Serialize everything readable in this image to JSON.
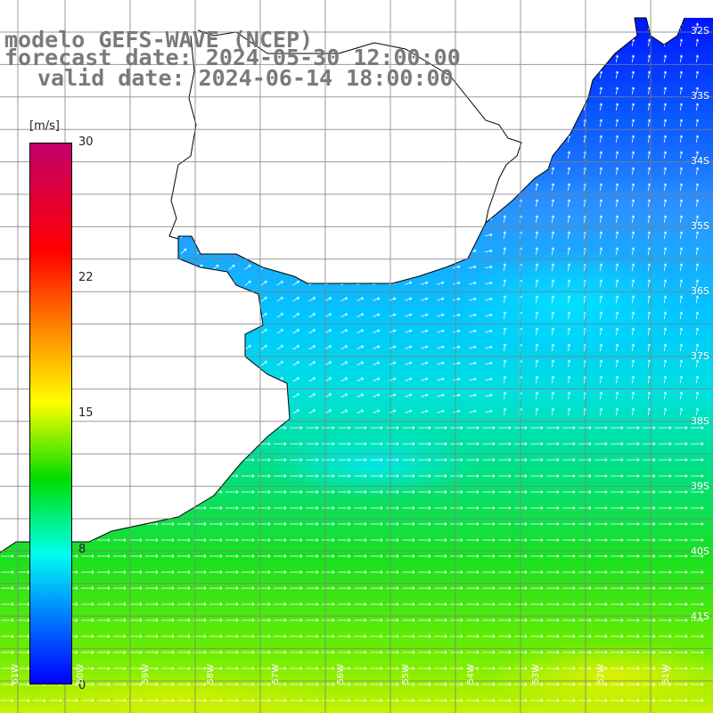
{
  "title": {
    "line1": "modelo GEFS-WAVE (NCEP)",
    "line2": "forecast date: 2024-05-30 12:00:00",
    "line3": "valid date: 2024-06-14 18:00:00"
  },
  "colorbar": {
    "unit": "[m/s]",
    "ticks": [
      "30",
      "22",
      "15",
      "8",
      "0"
    ],
    "colors": [
      "#c4006c",
      "#ff0000",
      "#ff7a00",
      "#ffff00",
      "#00dd00",
      "#00ffee",
      "#0078ff",
      "#0000ff"
    ]
  },
  "lat_labels": [
    "32S",
    "33S",
    "34S",
    "35S",
    "36S",
    "37S",
    "38S",
    "39S",
    "40S",
    "41S"
  ],
  "lon_labels": [
    "61W",
    "60W",
    "59W",
    "58W",
    "57W",
    "56W",
    "55W",
    "54W",
    "53W",
    "52W",
    "51W"
  ],
  "map": {
    "land_color": "#ffffff",
    "coast_color": "#000000",
    "grid_color": "#7f7f7f"
  }
}
